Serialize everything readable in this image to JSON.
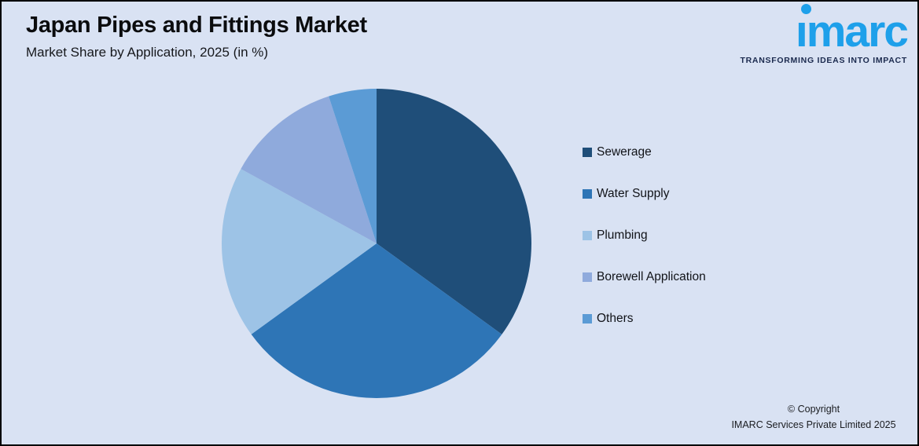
{
  "title": "Japan Pipes and Fittings Market",
  "subtitle": "Market Share by Application, 2025 (in %)",
  "logo": {
    "text": "imarc",
    "tagline": "TRANSFORMING IDEAS INTO IMPACT",
    "brand_color": "#1EA0EA",
    "tagline_color": "#1B2A4E"
  },
  "copyright": {
    "line1": "© Copyright",
    "line2": "IMARC Services Private Limited 2025"
  },
  "colors": {
    "background": "#D9E2F3",
    "frame_border": "#000000",
    "title_text": "#0b0c0e",
    "legend_text": "#111318"
  },
  "chart_data": {
    "type": "pie",
    "title": "Japan Pipes and Fittings Market",
    "subtitle": "Market Share by Application, 2025 (in %)",
    "unit": "%",
    "start_angle_deg": 0,
    "direction": "clockwise",
    "legend_position": "right",
    "data_labels_visible": false,
    "labels": [
      "Sewerage",
      "Water Supply",
      "Plumbing",
      "Borewell Application",
      "Others"
    ],
    "values": [
      35,
      30,
      18,
      12,
      5
    ],
    "colors": [
      "#1F4E79",
      "#2E75B6",
      "#9DC3E6",
      "#8FAADC",
      "#5B9BD5"
    ]
  }
}
